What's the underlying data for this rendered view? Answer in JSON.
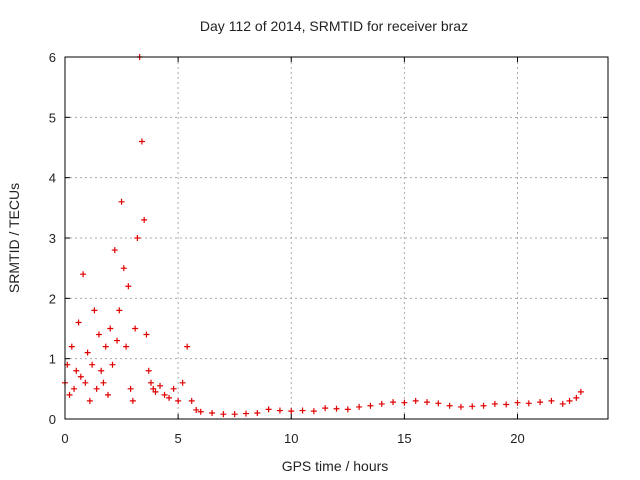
{
  "chart_data": {
    "type": "scatter",
    "title": "Day 112 of 2014, SRMTID for receiver braz",
    "xlabel": "GPS time / hours",
    "ylabel": "SRMTID / TECUs",
    "xlim": [
      0,
      24
    ],
    "ylim": [
      0,
      6
    ],
    "x_ticks": [
      0,
      5,
      10,
      15,
      20
    ],
    "y_ticks": [
      0,
      1,
      2,
      3,
      4,
      5,
      6
    ],
    "grid": true,
    "marker": "+",
    "series": [
      {
        "name": "SRMTID",
        "color": "#e00000",
        "x": [
          0.0,
          0.1,
          0.2,
          0.3,
          0.4,
          0.5,
          0.6,
          0.7,
          0.8,
          0.9,
          1.0,
          1.1,
          1.2,
          1.3,
          1.4,
          1.5,
          1.6,
          1.7,
          1.8,
          1.9,
          2.0,
          2.1,
          2.2,
          2.3,
          2.4,
          2.5,
          2.6,
          2.7,
          2.8,
          2.9,
          3.0,
          3.1,
          3.2,
          3.3,
          3.4,
          3.5,
          3.6,
          3.7,
          3.8,
          3.9,
          4.0,
          4.2,
          4.4,
          4.6,
          4.8,
          5.0,
          5.2,
          5.4,
          5.6,
          5.8,
          6.0,
          6.5,
          7.0,
          7.5,
          8.0,
          8.5,
          9.0,
          9.5,
          10.0,
          10.5,
          11.0,
          11.5,
          12.0,
          12.5,
          13.0,
          13.5,
          14.0,
          14.5,
          15.0,
          15.5,
          16.0,
          16.5,
          17.0,
          17.5,
          18.0,
          18.5,
          19.0,
          19.5,
          20.0,
          20.5,
          21.0,
          21.5,
          22.0,
          22.3,
          22.6,
          22.8
        ],
        "y": [
          0.6,
          0.9,
          0.4,
          1.2,
          0.5,
          0.8,
          1.6,
          0.7,
          2.4,
          0.6,
          1.1,
          0.3,
          0.9,
          1.8,
          0.5,
          1.4,
          0.8,
          0.6,
          1.2,
          0.4,
          1.5,
          0.9,
          2.8,
          1.3,
          1.8,
          3.6,
          2.5,
          1.2,
          2.2,
          0.5,
          0.3,
          1.5,
          3.0,
          6.0,
          4.6,
          3.3,
          1.4,
          0.8,
          0.6,
          0.5,
          0.45,
          0.55,
          0.4,
          0.35,
          0.5,
          0.3,
          0.6,
          1.2,
          0.3,
          0.15,
          0.12,
          0.1,
          0.08,
          0.08,
          0.09,
          0.1,
          0.16,
          0.14,
          0.13,
          0.14,
          0.13,
          0.18,
          0.17,
          0.16,
          0.2,
          0.22,
          0.25,
          0.28,
          0.27,
          0.3,
          0.28,
          0.26,
          0.22,
          0.2,
          0.21,
          0.22,
          0.25,
          0.24,
          0.27,
          0.26,
          0.28,
          0.3,
          0.25,
          0.3,
          0.35,
          0.45
        ]
      }
    ]
  }
}
